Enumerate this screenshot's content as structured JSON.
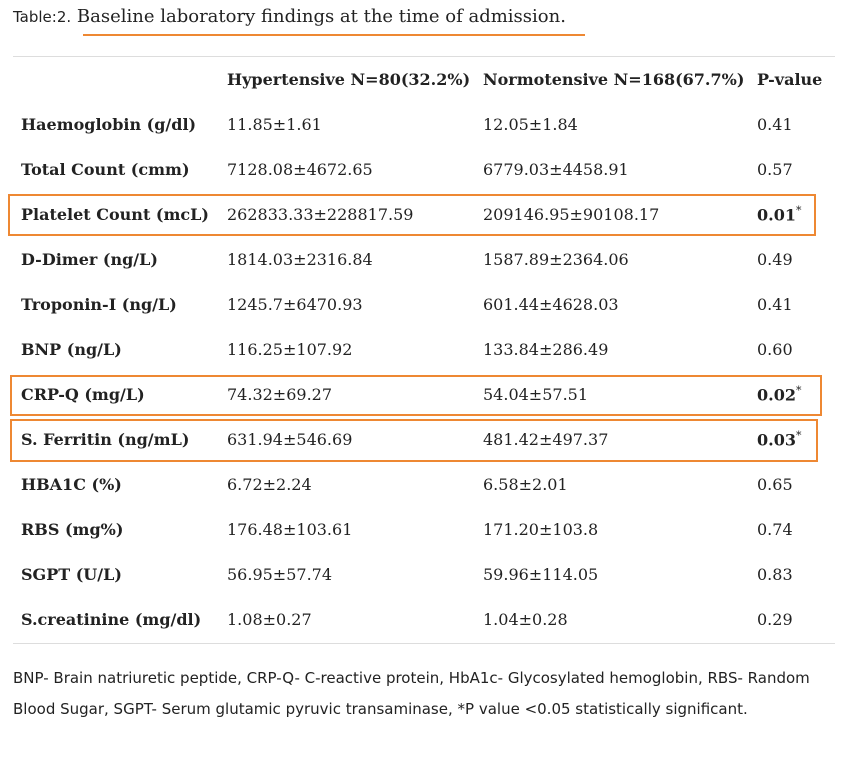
{
  "caption": {
    "prefix": "Table:2.",
    "title": "Baseline laboratory findings at the time of admission."
  },
  "colors": {
    "highlight": "#ee8833",
    "rule": "#dddddd"
  },
  "table": {
    "headers": [
      "",
      "Hypertensive N=80(32.2%)",
      "Normotensive N=168(67.7%)",
      "P-value"
    ],
    "rows": [
      {
        "label": "Haemoglobin (g/dl)",
        "hyp": "11.85±1.61",
        "norm": "12.05±1.84",
        "p": "0.41"
      },
      {
        "label": "Total Count (cmm)",
        "hyp": "7128.08±4672.65",
        "norm": "6779.03±4458.91",
        "p": "0.57"
      },
      {
        "label": "Platelet Count (mcL)",
        "hyp": "262833.33±228817.59",
        "norm": "209146.95±90108.17",
        "p": "0.01",
        "star": "*"
      },
      {
        "label": "D-Dimer (ng/L)",
        "hyp": "1814.03±2316.84",
        "norm": "1587.89±2364.06",
        "p": "0.49"
      },
      {
        "label": "Troponin-I (ng/L)",
        "hyp": "1245.7±6470.93",
        "norm": "601.44±4628.03",
        "p": "0.41"
      },
      {
        "label": "BNP (ng/L)",
        "hyp": "116.25±107.92",
        "norm": "133.84±286.49",
        "p": "0.60"
      },
      {
        "label": "CRP-Q (mg/L)",
        "hyp": "74.32±69.27",
        "norm": "54.04±57.51",
        "p": "0.02",
        "star": "*"
      },
      {
        "label": "S. Ferritin (ng/mL)",
        "hyp": "631.94±546.69",
        "norm": "481.42±497.37",
        "p": "0.03",
        "star": "*"
      },
      {
        "label": "HBA1C (%)",
        "hyp": "6.72±2.24",
        "norm": "6.58±2.01",
        "p": "0.65"
      },
      {
        "label": "RBS (mg%)",
        "hyp": "176.48±103.61",
        "norm": "171.20±103.8",
        "p": "0.74"
      },
      {
        "label": "SGPT (U/L)",
        "hyp": "56.95±57.74",
        "norm": "59.96±114.05",
        "p": "0.83"
      },
      {
        "label": "S.creatinine (mg/dl)",
        "hyp": "1.08±0.27",
        "norm": "1.04±0.28",
        "p": "0.29"
      }
    ]
  },
  "footnote": "BNP- Brain natriuretic peptide, CRP-Q- C-reactive protein, HbA1c- Glycosylated hemoglobin, RBS- Random Blood Sugar, SGPT- Serum glutamic pyruvic transaminase, *P value <0.05 statistically significant."
}
